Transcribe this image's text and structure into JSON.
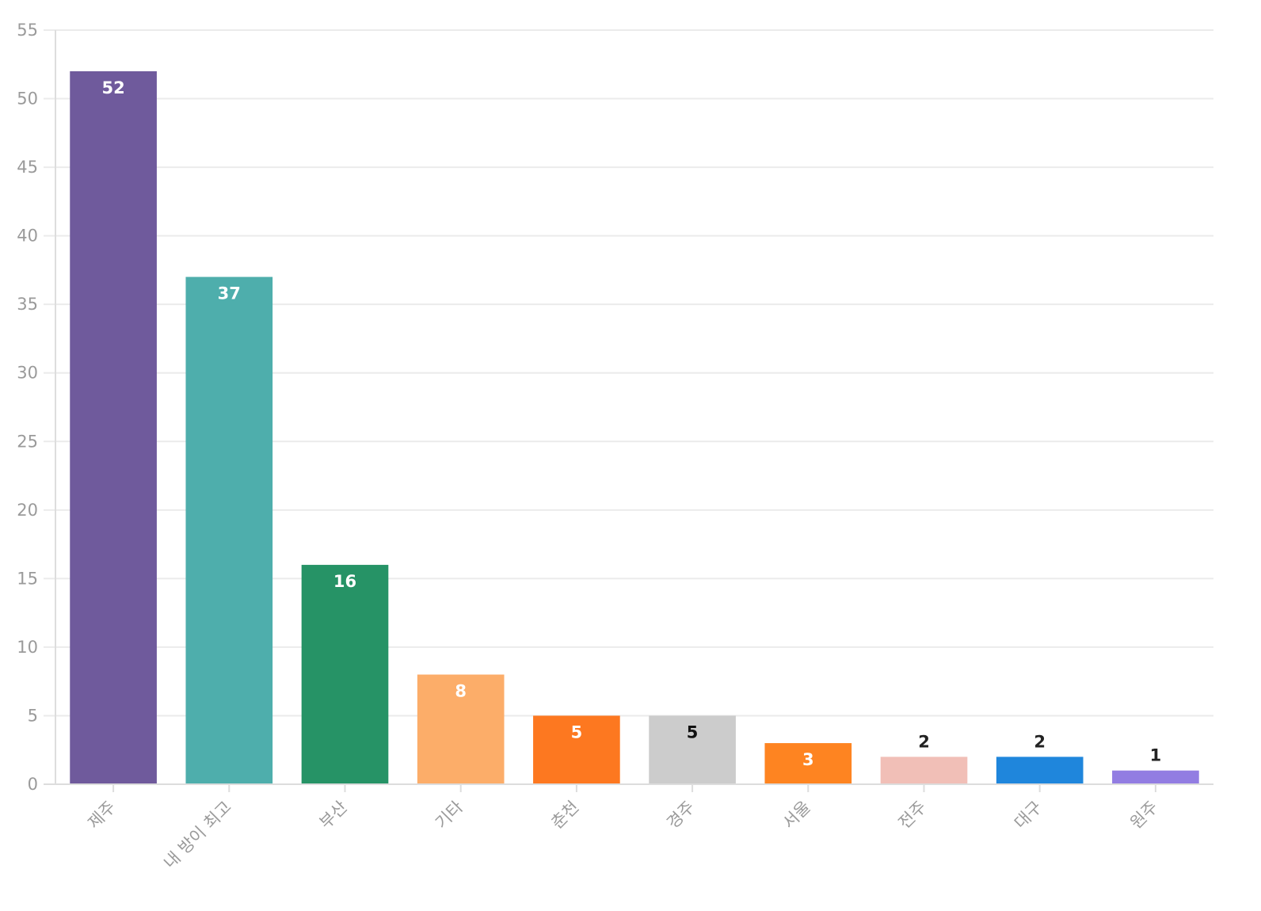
{
  "chart_data": {
    "type": "bar",
    "title": "",
    "xlabel": "",
    "ylabel": "",
    "ylim": [
      0,
      55
    ],
    "y_ticks": [
      0,
      5,
      10,
      15,
      20,
      25,
      30,
      35,
      40,
      45,
      50,
      55
    ],
    "grid": true,
    "legend": "none",
    "categories": [
      "제주",
      "내 방이 최고",
      "부산",
      "기타",
      "춘천",
      "경주",
      "서울",
      "전주",
      "대구",
      "원주"
    ],
    "values": [
      52,
      37,
      16,
      8,
      5,
      5,
      3,
      2,
      2,
      1
    ],
    "colors": [
      "#6f5a9c",
      "#4eaeac",
      "#269366",
      "#fcad69",
      "#fd7820",
      "#cccccc",
      "#fe8421",
      "#f1bfb7",
      "#1f86dc",
      "#927de2"
    ],
    "data_labels": [
      "52",
      "37",
      "16",
      "8",
      "5",
      "5",
      "3",
      "2",
      "2",
      "1"
    ],
    "data_label_position": [
      "inside",
      "inside",
      "inside",
      "inside",
      "inside",
      "inside",
      "inside",
      "above",
      "above",
      "above"
    ],
    "data_label_colors": [
      "#ffffff",
      "#ffffff",
      "#ffffff",
      "#ffffff",
      "#ffffff",
      "#111111",
      "#ffffff",
      "#222222",
      "#222222",
      "#222222"
    ]
  }
}
